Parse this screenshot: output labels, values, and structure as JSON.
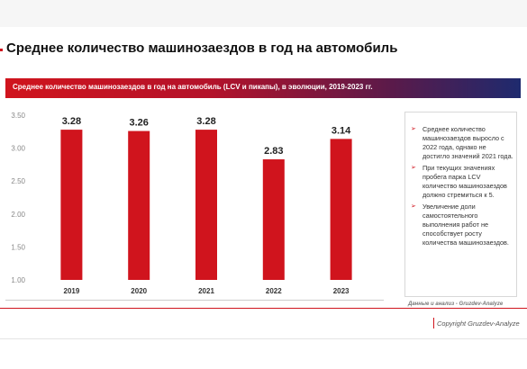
{
  "page": {
    "title": "Среднее количество машинозаездов в год на автомобиль",
    "banner_title": "Среднее количество машинозаездов в год на автомобиль (LCV и пикапы), в эволюции, 2019-2023 гг."
  },
  "colors": {
    "bar": "#d0141d",
    "accent": "#d0141d",
    "banner_start": "#d0141d",
    "banner_end": "#1e2a6e"
  },
  "chart_data": {
    "type": "bar",
    "categories": [
      "2019",
      "2020",
      "2021",
      "2022",
      "2023"
    ],
    "values": [
      3.28,
      3.26,
      3.28,
      2.83,
      3.14
    ],
    "value_labels": [
      "3.28",
      "3.26",
      "3.28",
      "2.83",
      "3.14"
    ],
    "y_ticks": [
      "3.50",
      "3.00",
      "2.50",
      "2.00",
      "1.50",
      "1.00"
    ],
    "ylim": [
      1.0,
      3.5
    ],
    "grid": false,
    "legend": "none"
  },
  "side_panel": {
    "bullet_icon": "arrow-bullet-icon",
    "items": [
      "Среднее количество машинозаездов выросло с 2022 года, однако не достигло значений 2021 года.",
      "При текущих значениях пробега парка LCV количество машинозаездов должно стремиться к 5.",
      "Увеличение доли самостоятельного выполнения работ не способствует росту количества машинозаездов."
    ]
  },
  "source_note": "Данные и анализ - Gruzdev-Analyze",
  "footer": {
    "copyright": "Copyright Gruzdev-Analyze"
  }
}
